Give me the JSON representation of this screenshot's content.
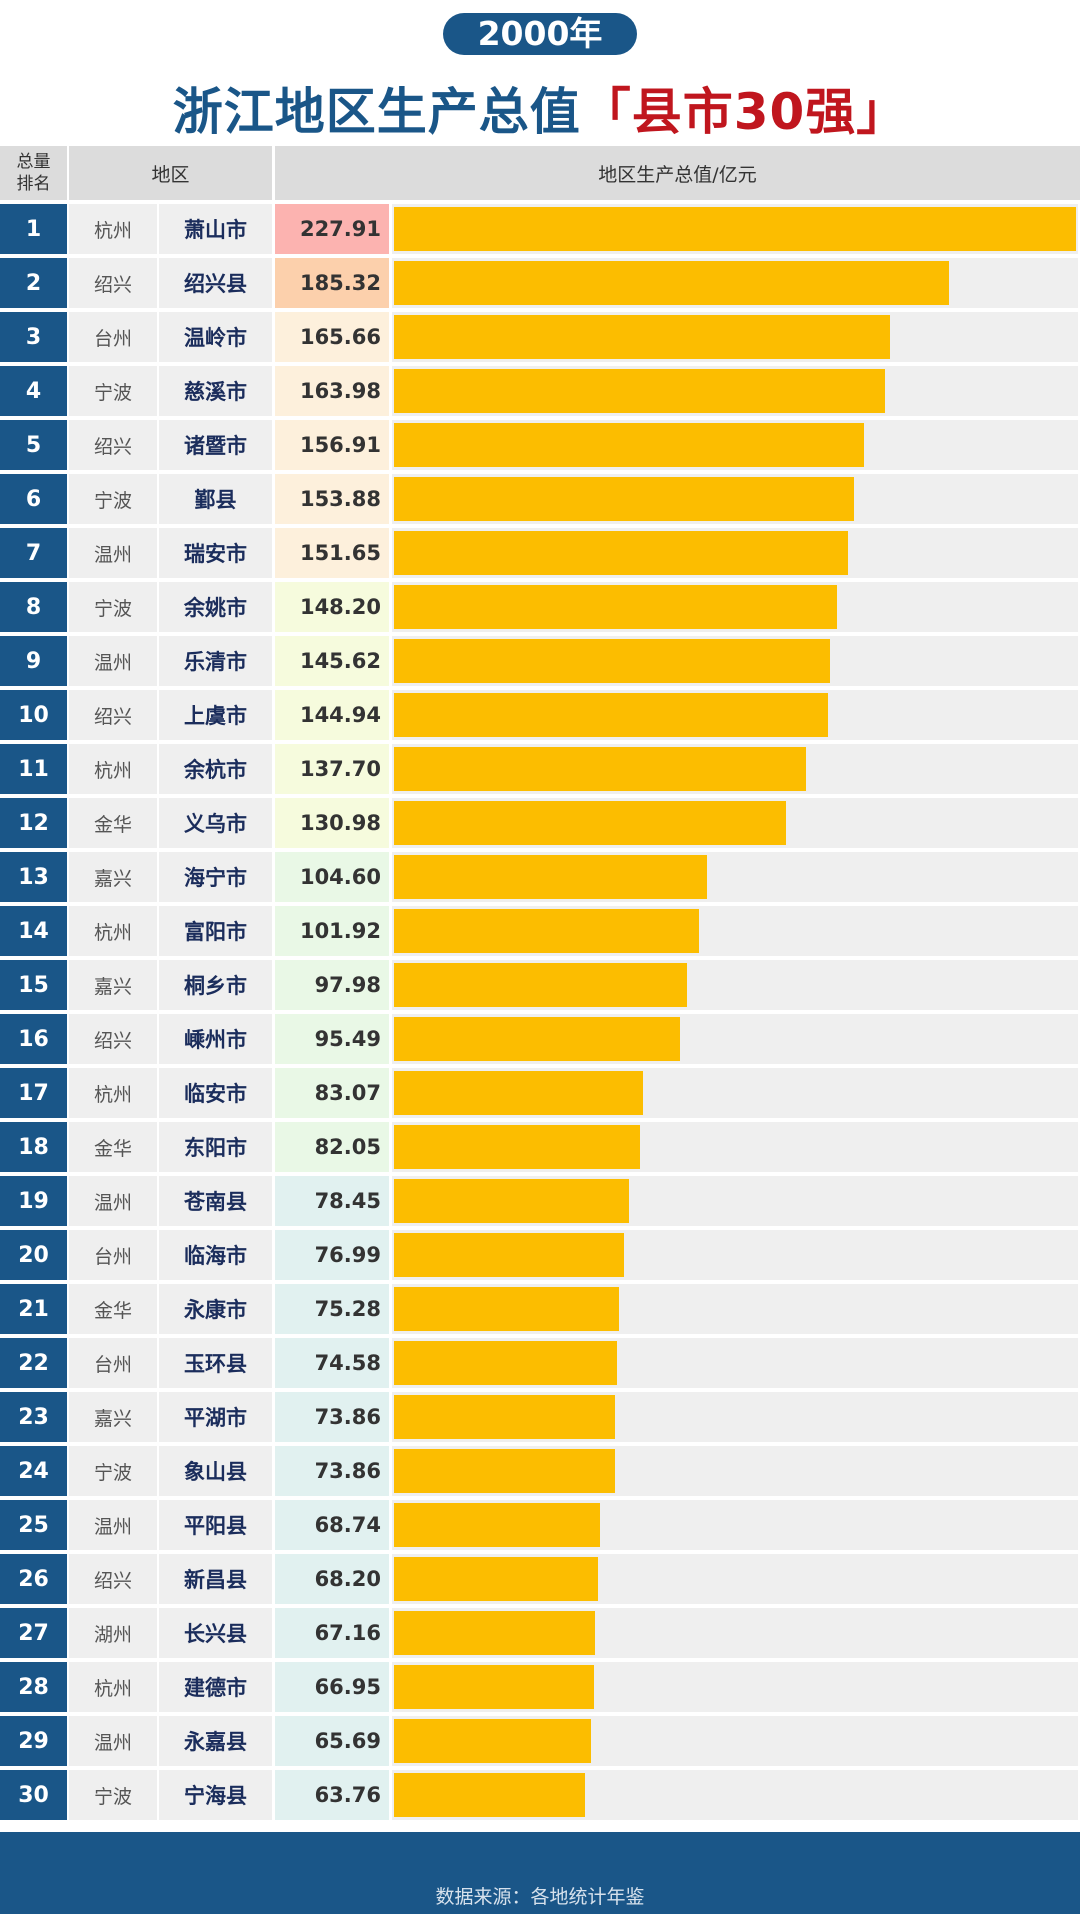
{
  "year_badge": "2000年",
  "title": {
    "main": "浙江地区生产总值",
    "highlight": "「县市30强」"
  },
  "header": {
    "rank_line1": "总量",
    "rank_line2": "排名",
    "region": "地区",
    "value": "地区生产总值/亿元"
  },
  "colors": {
    "primary": "#1a5688",
    "bar": "#fcbd00",
    "title_highlight": "#c0161e"
  },
  "footer": {
    "source": "数据来源：各地统计年鉴"
  },
  "chart_data": {
    "type": "bar",
    "orientation": "horizontal",
    "title": "浙江地区生产总值「县市30强」",
    "unit": "亿元",
    "xlim": [
      0,
      227.91
    ],
    "rows": [
      {
        "rank": "1",
        "city": "杭州",
        "county": "萧山市",
        "value": "227.91"
      },
      {
        "rank": "2",
        "city": "绍兴",
        "county": "绍兴县",
        "value": "185.32"
      },
      {
        "rank": "3",
        "city": "台州",
        "county": "温岭市",
        "value": "165.66"
      },
      {
        "rank": "4",
        "city": "宁波",
        "county": "慈溪市",
        "value": "163.98"
      },
      {
        "rank": "5",
        "city": "绍兴",
        "county": "诸暨市",
        "value": "156.91"
      },
      {
        "rank": "6",
        "city": "宁波",
        "county": "鄞县",
        "value": "153.88"
      },
      {
        "rank": "7",
        "city": "温州",
        "county": "瑞安市",
        "value": "151.65"
      },
      {
        "rank": "8",
        "city": "宁波",
        "county": "余姚市",
        "value": "148.20"
      },
      {
        "rank": "9",
        "city": "温州",
        "county": "乐清市",
        "value": "145.62"
      },
      {
        "rank": "10",
        "city": "绍兴",
        "county": "上虞市",
        "value": "144.94"
      },
      {
        "rank": "11",
        "city": "杭州",
        "county": "余杭市",
        "value": "137.70"
      },
      {
        "rank": "12",
        "city": "金华",
        "county": "义乌市",
        "value": "130.98"
      },
      {
        "rank": "13",
        "city": "嘉兴",
        "county": "海宁市",
        "value": "104.60"
      },
      {
        "rank": "14",
        "city": "杭州",
        "county": "富阳市",
        "value": "101.92"
      },
      {
        "rank": "15",
        "city": "嘉兴",
        "county": "桐乡市",
        "value": "97.98"
      },
      {
        "rank": "16",
        "city": "绍兴",
        "county": "嵊州市",
        "value": "95.49"
      },
      {
        "rank": "17",
        "city": "杭州",
        "county": "临安市",
        "value": "83.07"
      },
      {
        "rank": "18",
        "city": "金华",
        "county": "东阳市",
        "value": "82.05"
      },
      {
        "rank": "19",
        "city": "温州",
        "county": "苍南县",
        "value": "78.45"
      },
      {
        "rank": "20",
        "city": "台州",
        "county": "临海市",
        "value": "76.99"
      },
      {
        "rank": "21",
        "city": "金华",
        "county": "永康市",
        "value": "75.28"
      },
      {
        "rank": "22",
        "city": "台州",
        "county": "玉环县",
        "value": "74.58"
      },
      {
        "rank": "23",
        "city": "嘉兴",
        "county": "平湖市",
        "value": "73.86"
      },
      {
        "rank": "24",
        "city": "宁波",
        "county": "象山县",
        "value": "73.86"
      },
      {
        "rank": "25",
        "city": "温州",
        "county": "平阳县",
        "value": "68.74"
      },
      {
        "rank": "26",
        "city": "绍兴",
        "county": "新昌县",
        "value": "68.20"
      },
      {
        "rank": "27",
        "city": "湖州",
        "county": "长兴县",
        "value": "67.16"
      },
      {
        "rank": "28",
        "city": "杭州",
        "county": "建德市",
        "value": "66.95"
      },
      {
        "rank": "29",
        "city": "温州",
        "county": "永嘉县",
        "value": "65.69"
      },
      {
        "rank": "30",
        "city": "宁波",
        "county": "宁海县",
        "value": "63.76"
      }
    ]
  }
}
